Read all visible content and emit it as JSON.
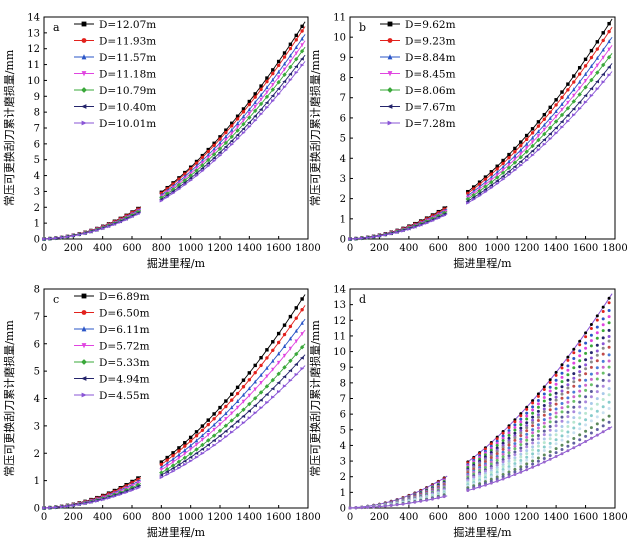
{
  "chart_data": [
    {
      "panel": "a",
      "type": "line",
      "xlabel": "掘进里程/m",
      "ylabel": "常压可更换刮刀累计磨损量/mm",
      "xlim": [
        0,
        1800
      ],
      "ylim": [
        0,
        14
      ],
      "xticks": [
        0,
        200,
        400,
        600,
        800,
        1000,
        1200,
        1400,
        1600,
        1800
      ],
      "yticks": [
        0,
        1,
        2,
        3,
        4,
        5,
        6,
        7,
        8,
        9,
        10,
        11,
        12,
        13,
        14
      ],
      "legend_position": "top-left",
      "series": [
        {
          "name": "D=12.07m",
          "final": 13.7,
          "color": "#000000",
          "marker": "square"
        },
        {
          "name": "D=11.93m",
          "final": 13.4,
          "color": "#e2211c",
          "marker": "circle"
        },
        {
          "name": "D=11.57m",
          "final": 12.9,
          "color": "#2a55c7",
          "marker": "triangle"
        },
        {
          "name": "D=11.18m",
          "final": 12.5,
          "color": "#e044e0",
          "marker": "triangle-down"
        },
        {
          "name": "D=10.79m",
          "final": 12.1,
          "color": "#3aa83a",
          "marker": "diamond"
        },
        {
          "name": "D=10.40m",
          "final": 11.6,
          "color": "#24246b",
          "marker": "triangle-left"
        },
        {
          "name": "D=10.01m",
          "final": 11.2,
          "color": "#8a55d6",
          "marker": "triangle-right"
        }
      ]
    },
    {
      "panel": "b",
      "type": "line",
      "xlabel": "掘进里程/m",
      "ylabel": "常压可更换刮刀累计磨损量/mm",
      "xlim": [
        0,
        1800
      ],
      "ylim": [
        0,
        11
      ],
      "xticks": [
        0,
        200,
        400,
        600,
        800,
        1000,
        1200,
        1400,
        1600,
        1800
      ],
      "yticks": [
        0,
        1,
        2,
        3,
        4,
        5,
        6,
        7,
        8,
        9,
        10,
        11
      ],
      "legend_position": "top-left",
      "series": [
        {
          "name": "D=9.62m",
          "final": 10.9,
          "color": "#000000",
          "marker": "square"
        },
        {
          "name": "D=9.23m",
          "final": 10.5,
          "color": "#e2211c",
          "marker": "circle"
        },
        {
          "name": "D=8.84m",
          "final": 10.0,
          "color": "#2a55c7",
          "marker": "triangle"
        },
        {
          "name": "D=8.45m",
          "final": 9.6,
          "color": "#e044e0",
          "marker": "triangle-down"
        },
        {
          "name": "D=8.06m",
          "final": 9.2,
          "color": "#3aa83a",
          "marker": "diamond"
        },
        {
          "name": "D=7.67m",
          "final": 8.7,
          "color": "#24246b",
          "marker": "triangle-left"
        },
        {
          "name": "D=7.28m",
          "final": 8.3,
          "color": "#8a55d6",
          "marker": "triangle-right"
        }
      ]
    },
    {
      "panel": "c",
      "type": "line",
      "xlabel": "掘进里程/m",
      "ylabel": "常压可更换刮刀累计磨损量/mm",
      "xlim": [
        0,
        1800
      ],
      "ylim": [
        0,
        8
      ],
      "xticks": [
        0,
        200,
        400,
        600,
        800,
        1000,
        1200,
        1400,
        1600,
        1800
      ],
      "yticks": [
        0,
        1,
        2,
        3,
        4,
        5,
        6,
        7,
        8
      ],
      "legend_position": "top-left",
      "series": [
        {
          "name": "D=6.89m",
          "final": 7.8,
          "color": "#000000",
          "marker": "square"
        },
        {
          "name": "D=6.50m",
          "final": 7.4,
          "color": "#e2211c",
          "marker": "circle"
        },
        {
          "name": "D=6.11m",
          "final": 6.9,
          "color": "#2a55c7",
          "marker": "triangle"
        },
        {
          "name": "D=5.72m",
          "final": 6.5,
          "color": "#e044e0",
          "marker": "triangle-down"
        },
        {
          "name": "D=5.33m",
          "final": 6.0,
          "color": "#3aa83a",
          "marker": "diamond"
        },
        {
          "name": "D=4.94m",
          "final": 5.6,
          "color": "#24246b",
          "marker": "triangle-left"
        },
        {
          "name": "D=4.55m",
          "final": 5.2,
          "color": "#8a55d6",
          "marker": "triangle-right"
        }
      ]
    },
    {
      "panel": "d",
      "type": "scatter",
      "xlabel": "掘进里程/m",
      "ylabel": "常压可更换刮刀累计磨损量/mm",
      "xlim": [
        0,
        1800
      ],
      "ylim": [
        0,
        14
      ],
      "xticks": [
        0,
        200,
        400,
        600,
        800,
        1000,
        1200,
        1400,
        1600,
        1800
      ],
      "yticks": [
        0,
        1,
        2,
        3,
        4,
        5,
        6,
        7,
        8,
        9,
        10,
        11,
        12,
        13,
        14
      ],
      "finals": [
        13.7,
        13.4,
        12.9,
        12.5,
        12.1,
        11.6,
        11.2,
        10.9,
        10.5,
        10.0,
        9.6,
        9.2,
        8.7,
        8.3,
        7.8,
        7.4,
        6.9,
        6.5,
        6.0,
        5.6,
        5.2
      ],
      "colors": [
        "#000000",
        "#e2211c",
        "#2a55c7",
        "#e044e0",
        "#3aa83a",
        "#24246b",
        "#8a55d6",
        "#8a8a8a",
        "#c04b4b",
        "#4b7bd6",
        "#cc66cc",
        "#6abf6a",
        "#5a5a9a",
        "#aa88dd",
        "#a9c9e9",
        "#b8e6d0",
        "#88cccc",
        "#c9e0f0",
        "#5c8a5c",
        "#6060a0",
        "#9966cc"
      ]
    }
  ]
}
